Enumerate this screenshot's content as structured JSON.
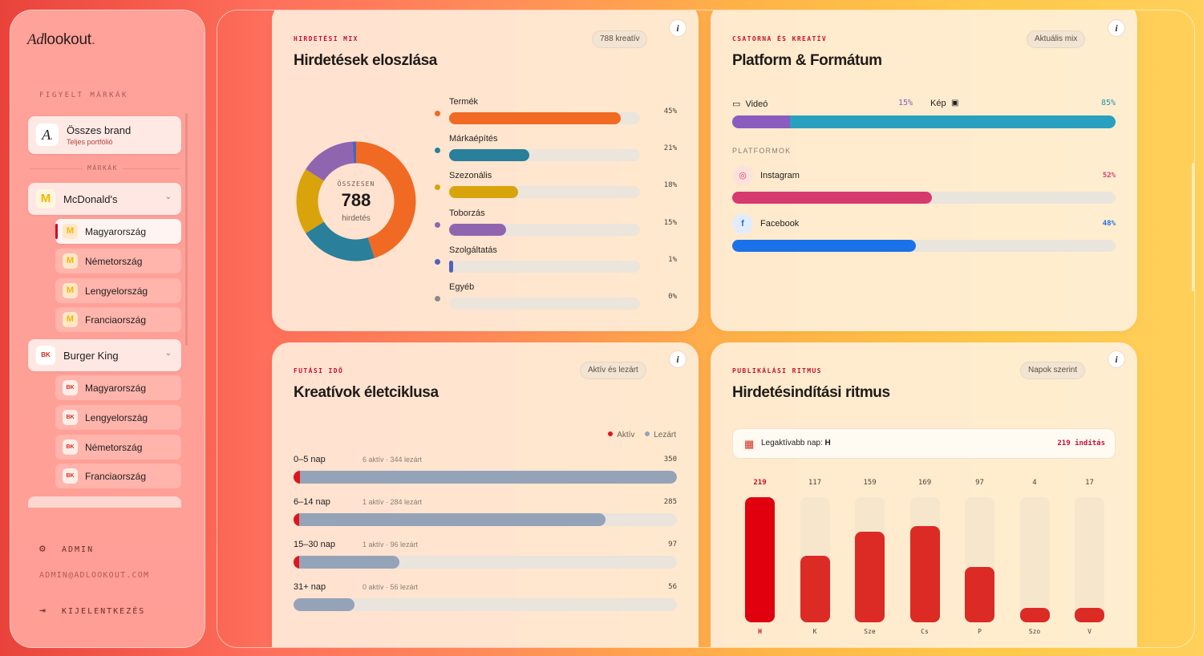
{
  "sidebar": {
    "logo_ad": "Ad",
    "logo_rest": "lookout",
    "section_label": "FIGYELT MÁRKÁK",
    "all_brand": {
      "avatar": "A",
      "title": "Összes brand",
      "subtitle": "Teljes portfólió"
    },
    "brands_divider": "MÁRKÁK",
    "brands": [
      {
        "name": "McDonald's",
        "icon": "mcdonalds-logo",
        "countries": [
          "Magyarország",
          "Németország",
          "Lengyelország",
          "Franciaország"
        ],
        "active_country": "Magyarország"
      },
      {
        "name": "Burger King",
        "icon": "burger-king-logo",
        "countries": [
          "Magyarország",
          "Lengyelország",
          "Németország",
          "Franciaország"
        ]
      }
    ],
    "admin_label": "ADMIN",
    "admin_email": "ADMIN@ADLOOKOUT.COM",
    "logout_label": "KIJELENTKEZÉS"
  },
  "mix_card": {
    "eyebrow": "HIRDETÉSI MIX",
    "title": "Hirdetések eloszlása",
    "pill": "788 kreatív",
    "donut": {
      "top": "ÖSSZESEN",
      "value": "788",
      "bottom": "hirdetés"
    },
    "items": [
      {
        "name": "Termék",
        "pct_label": "45%",
        "pct": 45,
        "color": "#f06a23"
      },
      {
        "name": "Márkaépítés",
        "pct_label": "21%",
        "pct": 21,
        "color": "#2a7f9a"
      },
      {
        "name": "Szezonális",
        "pct_label": "18%",
        "pct": 18,
        "color": "#d9a30b"
      },
      {
        "name": "Toborzás",
        "pct_label": "15%",
        "pct": 15,
        "color": "#8f65b0"
      },
      {
        "name": "Szolgáltatás",
        "pct_label": "1%",
        "pct": 1,
        "color": "#5362b8"
      },
      {
        "name": "Egyéb",
        "pct_label": "0%",
        "pct": 0,
        "color": "#8a8a8a"
      }
    ]
  },
  "platform_card": {
    "eyebrow": "CSATORNA ÉS KREATÍV",
    "title": "Platform & Formátum",
    "pill": "Aktuális mix",
    "video_label": "Videó",
    "video_pct_label": "15%",
    "video_pct": 15,
    "image_label": "Kép",
    "image_pct_label": "85%",
    "platforms_label": "PLATFORMOK",
    "platforms": [
      {
        "name": "Instagram",
        "pct_label": "52%",
        "pct": 52,
        "color": "#d63a6e",
        "icon": "instagram-icon"
      },
      {
        "name": "Facebook",
        "pct_label": "48%",
        "pct": 48,
        "color": "#1b72e8",
        "icon": "facebook-icon"
      }
    ]
  },
  "lifecycle_card": {
    "eyebrow": "FUTÁSI IDŐ",
    "title": "Kreatívok életciklusa",
    "pill": "Aktív és lezárt",
    "legend_active": "Aktív",
    "legend_closed": "Lezárt",
    "rows": [
      {
        "label": "0–5 nap",
        "detail": "6 aktív · 344 lezárt",
        "total_label": "350",
        "active": 6,
        "closed": 344
      },
      {
        "label": "6–14 nap",
        "detail": "1 aktív · 284 lezárt",
        "total_label": "285",
        "active": 1,
        "closed": 284
      },
      {
        "label": "15–30 nap",
        "detail": "1 aktív · 96 lezárt",
        "total_label": "97",
        "active": 1,
        "closed": 96
      },
      {
        "label": "31+ nap",
        "detail": "0 aktív · 56 lezárt",
        "total_label": "56",
        "active": 0,
        "closed": 56
      }
    ],
    "scale_max": 350
  },
  "rhythm_card": {
    "eyebrow": "PUBLIKÁLÁSI RITMUS",
    "title": "Hirdetésindítási ritmus",
    "pill": "Napok szerint",
    "peak_label": "Legaktívabb nap:",
    "peak_day": "H",
    "peak_value": "219 indítás",
    "days": [
      {
        "day": "H",
        "value": 219,
        "value_label": "219"
      },
      {
        "day": "K",
        "value": 117,
        "value_label": "117"
      },
      {
        "day": "Sze",
        "value": 159,
        "value_label": "159"
      },
      {
        "day": "Cs",
        "value": 169,
        "value_label": "169"
      },
      {
        "day": "P",
        "value": 97,
        "value_label": "97"
      },
      {
        "day": "Szo",
        "value": 4,
        "value_label": "4"
      },
      {
        "day": "V",
        "value": 17,
        "value_label": "17"
      }
    ]
  },
  "colors": {
    "accent": "#c8102e",
    "video": "#8a5cc0",
    "image": "#2aa0c0",
    "closed": "#95a3b8",
    "active": "#e0151b"
  }
}
